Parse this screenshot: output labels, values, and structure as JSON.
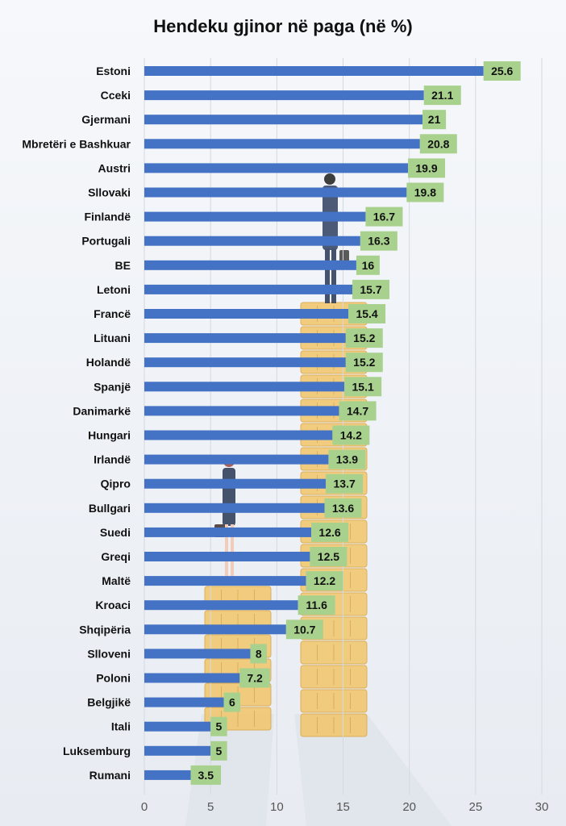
{
  "chart_data": {
    "type": "bar",
    "orientation": "horizontal",
    "title": "Hendeku gjinor në paga (në %)",
    "xlabel": "",
    "ylabel": "",
    "xlim": [
      0,
      30
    ],
    "x_ticks": [
      0,
      5,
      10,
      15,
      20,
      25,
      30
    ],
    "grid": true,
    "categories": [
      "Estoni",
      "Cceki",
      "Gjermani",
      "Mbretëri e Bashkuar",
      "Austri",
      "Sllovaki",
      "Finlandë",
      "Portugali",
      "BE",
      "Letoni",
      "Francë",
      "Lituani",
      "Holandë",
      "Spanjë",
      "Danimarkë",
      "Hungari",
      "Irlandë",
      "Qipro",
      "Bullgari",
      "Suedi",
      "Greqi",
      "Maltë",
      "Kroaci",
      "Shqipëria",
      "Slloveni",
      "Poloni",
      "Belgjikë",
      "Itali",
      "Luksemburg",
      "Rumani"
    ],
    "values": [
      25.6,
      21.1,
      21,
      20.8,
      19.9,
      19.8,
      16.7,
      16.3,
      16,
      15.7,
      15.4,
      15.2,
      15.2,
      15.1,
      14.7,
      14.2,
      13.9,
      13.7,
      13.6,
      12.6,
      12.5,
      12.2,
      11.6,
      10.7,
      8,
      7.2,
      6,
      5,
      5,
      3.5
    ],
    "value_labels": [
      "25.6",
      "21.1",
      "21",
      "20.8",
      "19.9",
      "19.8",
      "16.7",
      "16.3",
      "16",
      "15.7",
      "15.4",
      "15.2",
      "15.2",
      "15.1",
      "14.7",
      "14.2",
      "13.9",
      "13.7",
      "13.6",
      "12.6",
      "12.5",
      "12.2",
      "11.6",
      "10.7",
      "8",
      "7.2",
      "6",
      "5",
      "5",
      "3.5"
    ],
    "colors": {
      "bar": "#4472c4",
      "label_bg": "#a9d18e",
      "grid": "#d4d9e0",
      "coins": "#f2c66a",
      "coins_edge": "#d9a441"
    }
  }
}
